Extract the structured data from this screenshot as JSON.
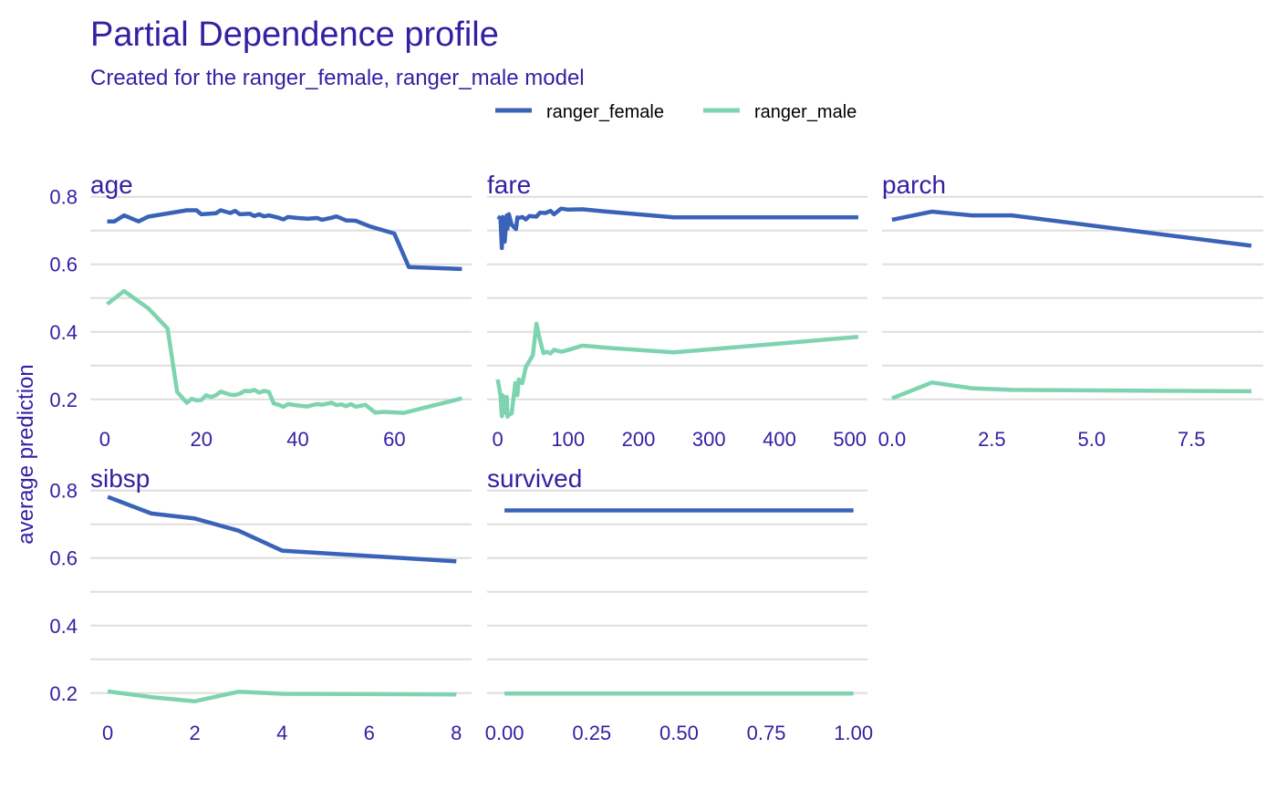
{
  "chart_data": {
    "type": "line",
    "title": "Partial Dependence profile",
    "subtitle": "Created for the ranger_female, ranger_male model",
    "ylabel": "average prediction",
    "legend_position": "top",
    "grid": true,
    "ylim": [
      0.14,
      0.81
    ],
    "yticks": [
      0.2,
      0.4,
      0.6,
      0.8
    ],
    "ytick_labels": [
      "0.2",
      "0.4",
      "0.6",
      "0.8"
    ],
    "colors": {
      "ranger_female": "#3a63b8",
      "ranger_male": "#7ed4b0"
    },
    "series_names": [
      "ranger_female",
      "ranger_male"
    ],
    "panels": [
      {
        "name": "age",
        "xlim": [
          -3,
          76
        ],
        "xticks": [
          0,
          20,
          40,
          60
        ],
        "xtick_labels": [
          "0",
          "20",
          "40",
          "60"
        ],
        "series": [
          {
            "name": "ranger_female",
            "x": [
              0.5,
              2,
              4,
              7,
              9,
              17,
              19,
              20,
              23,
              24,
              26,
              27,
              28,
              30,
              31,
              32,
              33,
              34,
              36,
              37,
              38,
              40,
              42,
              44,
              45,
              47,
              48,
              50,
              52,
              55,
              60,
              63,
              74
            ],
            "y": [
              0.727,
              0.727,
              0.745,
              0.727,
              0.741,
              0.76,
              0.76,
              0.748,
              0.751,
              0.76,
              0.752,
              0.758,
              0.748,
              0.75,
              0.743,
              0.748,
              0.742,
              0.745,
              0.738,
              0.733,
              0.74,
              0.737,
              0.735,
              0.737,
              0.732,
              0.738,
              0.742,
              0.73,
              0.729,
              0.712,
              0.691,
              0.592,
              0.586
            ]
          },
          {
            "name": "ranger_male",
            "x": [
              0.5,
              4,
              9,
              13,
              15,
              17,
              18,
              19,
              20,
              21,
              22,
              23,
              24,
              26,
              27,
              28,
              29,
              30,
              31,
              32,
              33,
              34,
              35,
              36,
              37,
              38,
              40,
              42,
              43,
              44,
              45,
              47,
              48,
              49,
              50,
              51,
              52,
              54,
              56,
              58,
              62,
              74
            ],
            "y": [
              0.482,
              0.521,
              0.47,
              0.41,
              0.222,
              0.19,
              0.202,
              0.197,
              0.198,
              0.212,
              0.207,
              0.212,
              0.223,
              0.214,
              0.213,
              0.217,
              0.225,
              0.224,
              0.228,
              0.22,
              0.225,
              0.222,
              0.188,
              0.184,
              0.178,
              0.186,
              0.182,
              0.179,
              0.183,
              0.186,
              0.184,
              0.19,
              0.183,
              0.185,
              0.18,
              0.186,
              0.178,
              0.184,
              0.161,
              0.163,
              0.16,
              0.203
            ]
          }
        ]
      },
      {
        "name": "fare",
        "xlim": [
          -15,
          525
        ],
        "xticks": [
          0,
          100,
          200,
          300,
          400,
          500
        ],
        "xtick_labels": [
          "0",
          "100",
          "200",
          "300",
          "400",
          "500"
        ],
        "series": [
          {
            "name": "ranger_female",
            "x": [
              0,
              4,
              6,
              7,
              8,
              10,
              13,
              14,
              16,
              20,
              26,
              28,
              30,
              35,
              40,
              45,
              55,
              60,
              68,
              75,
              80,
              90,
              100,
              120,
              150,
              250,
              512
            ],
            "y": [
              0.741,
              0.736,
              0.648,
              0.74,
              0.708,
              0.667,
              0.745,
              0.706,
              0.748,
              0.717,
              0.704,
              0.739,
              0.737,
              0.74,
              0.733,
              0.743,
              0.741,
              0.753,
              0.752,
              0.758,
              0.748,
              0.765,
              0.762,
              0.763,
              0.757,
              0.739,
              0.739
            ]
          },
          {
            "name": "ranger_male",
            "x": [
              0,
              4,
              6,
              7,
              8,
              10,
              13,
              14,
              16,
              20,
              25,
              28,
              30,
              35,
              40,
              50,
              55,
              60,
              65,
              70,
              75,
              80,
              90,
              100,
              120,
              160,
              250,
              512
            ],
            "y": [
              0.259,
              0.212,
              0.15,
              0.212,
              0.208,
              0.16,
              0.207,
              0.149,
              0.154,
              0.159,
              0.248,
              0.212,
              0.259,
              0.248,
              0.296,
              0.331,
              0.424,
              0.376,
              0.337,
              0.341,
              0.336,
              0.347,
              0.341,
              0.346,
              0.359,
              0.352,
              0.339,
              0.385
            ]
          }
        ]
      },
      {
        "name": "parch",
        "xlim": [
          -0.25,
          9.3
        ],
        "xticks": [
          0,
          2.5,
          5,
          7.5
        ],
        "xtick_labels": [
          "0.0",
          "2.5",
          "5.0",
          "7.5"
        ],
        "series": [
          {
            "name": "ranger_female",
            "x": [
              0,
              1,
              2,
              3,
              9
            ],
            "y": [
              0.732,
              0.756,
              0.745,
              0.745,
              0.655
            ]
          },
          {
            "name": "ranger_male",
            "x": [
              0,
              1,
              2,
              3,
              9
            ],
            "y": [
              0.203,
              0.25,
              0.233,
              0.228,
              0.224
            ]
          }
        ]
      },
      {
        "name": "sibsp",
        "xlim": [
          -0.4,
          8.35
        ],
        "xticks": [
          0,
          2,
          4,
          6,
          8
        ],
        "xtick_labels": [
          "0",
          "2",
          "4",
          "6",
          "8"
        ],
        "series": [
          {
            "name": "ranger_female",
            "x": [
              0,
              1,
              2,
              3,
              4,
              8
            ],
            "y": [
              0.781,
              0.732,
              0.717,
              0.681,
              0.622,
              0.59
            ]
          },
          {
            "name": "ranger_male",
            "x": [
              0,
              1,
              2,
              3,
              4,
              8
            ],
            "y": [
              0.205,
              0.188,
              0.176,
              0.204,
              0.198,
              0.196
            ]
          }
        ]
      },
      {
        "name": "survived",
        "xlim": [
          -0.05,
          1.04
        ],
        "xticks": [
          0,
          0.25,
          0.5,
          0.75,
          1
        ],
        "xtick_labels": [
          "0.00",
          "0.25",
          "0.50",
          "0.75",
          "1.00"
        ],
        "series": [
          {
            "name": "ranger_female",
            "x": [
              0,
              1
            ],
            "y": [
              0.741,
              0.741
            ]
          },
          {
            "name": "ranger_male",
            "x": [
              0,
              1
            ],
            "y": [
              0.199,
              0.199
            ]
          }
        ]
      }
    ]
  }
}
